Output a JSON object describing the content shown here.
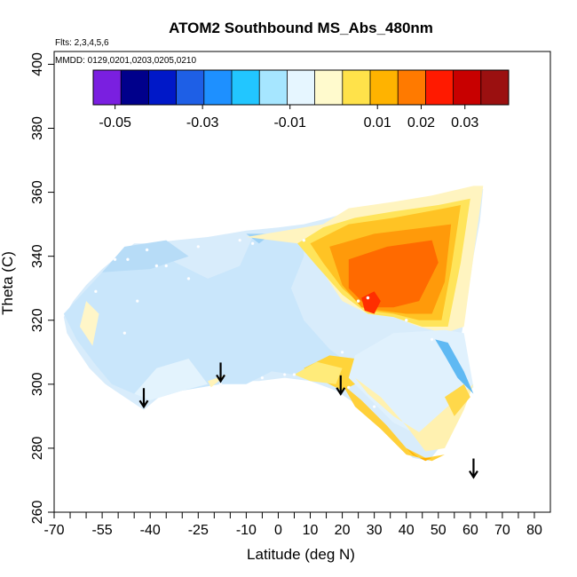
{
  "chart_data": {
    "type": "heatmap",
    "title": "ATOM2 Southbound MS_Abs_480nm",
    "flights_label": "Flts: 2,3,4,5,6",
    "dates_label": "MMDD: 0129,0201,0203,0205,0210",
    "xlabel": "Latitude (deg N)",
    "ylabel": "Theta (C)",
    "xlim": [
      -70,
      85
    ],
    "ylim": [
      260,
      404
    ],
    "x_ticks": [
      -70,
      -55,
      -40,
      -25,
      -10,
      0,
      10,
      20,
      30,
      40,
      50,
      60,
      70,
      80
    ],
    "x_ticks_minor": [
      -65,
      -60,
      -50,
      -45,
      -35,
      -30,
      -20,
      -15,
      -5,
      5,
      15,
      25,
      35,
      45,
      55,
      65,
      75
    ],
    "y_ticks": [
      260,
      280,
      300,
      320,
      340,
      360,
      380,
      400
    ],
    "colorbar": {
      "colors": [
        "#7a1fe0",
        "#00008b",
        "#0018c8",
        "#1e5fe6",
        "#1e90ff",
        "#22c6ff",
        "#a6e6ff",
        "#e6f6ff",
        "#fffacd",
        "#ffe24a",
        "#ffb300",
        "#ff7a00",
        "#ff1a00",
        "#c80000",
        "#9b1010"
      ],
      "tick_labels": [
        "-0.05",
        "-0.03",
        "-0.01",
        "0.01",
        "0.02",
        "0.03"
      ],
      "tick_values": [
        -0.05,
        -0.03,
        -0.01,
        0.01,
        0.02,
        0.03
      ],
      "range": [
        -0.055,
        0.04
      ]
    },
    "arrows": [
      {
        "lat": -42,
        "theta": 296
      },
      {
        "lat": -18,
        "theta": 304
      },
      {
        "lat": 19.5,
        "theta": 300
      },
      {
        "lat": 61,
        "theta": 274
      }
    ],
    "field_background": "#d8ecfb",
    "regions": [
      {
        "color": "#c9e6fb",
        "points": [
          [
            -67,
            322
          ],
          [
            -55,
            335
          ],
          [
            -48,
            342
          ],
          [
            -40,
            343
          ],
          [
            -32,
            338
          ],
          [
            -22,
            333
          ],
          [
            -12,
            337
          ],
          [
            -8,
            346
          ],
          [
            0,
            347
          ],
          [
            8,
            348
          ],
          [
            8,
            340
          ],
          [
            4,
            330
          ],
          [
            8,
            320
          ],
          [
            16,
            311
          ],
          [
            24,
            305
          ],
          [
            20,
            298
          ],
          [
            12,
            303
          ],
          [
            5,
            303
          ],
          [
            -2,
            304
          ],
          [
            -10,
            300
          ],
          [
            -18,
            300
          ],
          [
            -30,
            298
          ],
          [
            -40,
            295
          ],
          [
            -45,
            297
          ],
          [
            -52,
            300
          ],
          [
            -57,
            306
          ],
          [
            -63,
            314
          ]
        ]
      },
      {
        "color": "#e3f3fd",
        "points": [
          [
            -45,
            297
          ],
          [
            -40,
            295
          ],
          [
            -30,
            298
          ],
          [
            -22,
            300
          ],
          [
            -28,
            308
          ],
          [
            -38,
            305
          ]
        ]
      },
      {
        "color": "#b7dcf7",
        "points": [
          [
            -55,
            335
          ],
          [
            -48,
            343
          ],
          [
            -35,
            345
          ],
          [
            -28,
            340
          ],
          [
            -40,
            336
          ]
        ]
      },
      {
        "color": "#9dd1f5",
        "points": [
          [
            -10,
            347
          ],
          [
            -2,
            347
          ],
          [
            -6,
            344
          ]
        ]
      },
      {
        "color": "#fff6c8",
        "points": [
          [
            -60,
            326
          ],
          [
            -56,
            322
          ],
          [
            -58,
            312
          ],
          [
            -62,
            318
          ]
        ]
      },
      {
        "color": "#fff3b8",
        "points": [
          [
            -22,
            301
          ],
          [
            -16,
            303
          ],
          [
            -21,
            299
          ]
        ]
      },
      {
        "color": "#fff4c0",
        "points": [
          [
            -10,
            346
          ],
          [
            8,
            349
          ],
          [
            14,
            350
          ],
          [
            22,
            355
          ],
          [
            36,
            357
          ],
          [
            48,
            359
          ],
          [
            61,
            362
          ],
          [
            64,
            362
          ],
          [
            61,
            340
          ],
          [
            58,
            318
          ],
          [
            52,
            316
          ],
          [
            44,
            318
          ],
          [
            36,
            321
          ],
          [
            28,
            322
          ],
          [
            20,
            326
          ],
          [
            12,
            338
          ],
          [
            6,
            344
          ]
        ]
      },
      {
        "color": "#ffe45a",
        "points": [
          [
            6,
            344
          ],
          [
            14,
            349
          ],
          [
            24,
            352
          ],
          [
            36,
            354
          ],
          [
            50,
            356
          ],
          [
            60,
            358
          ],
          [
            57,
            338
          ],
          [
            53,
            318
          ],
          [
            45,
            318
          ],
          [
            36,
            321
          ],
          [
            28,
            322
          ],
          [
            20,
            328
          ],
          [
            12,
            337
          ]
        ]
      },
      {
        "color": "#ffc324",
        "points": [
          [
            10,
            344
          ],
          [
            22,
            350
          ],
          [
            36,
            352
          ],
          [
            52,
            355
          ],
          [
            57,
            356
          ],
          [
            54,
            336
          ],
          [
            51,
            320
          ],
          [
            44,
            320
          ],
          [
            36,
            322
          ],
          [
            28,
            323
          ],
          [
            20,
            330
          ],
          [
            14,
            338
          ]
        ]
      },
      {
        "color": "#ff9a0a",
        "points": [
          [
            16,
            343
          ],
          [
            30,
            347
          ],
          [
            46,
            349
          ],
          [
            54,
            350
          ],
          [
            52,
            332
          ],
          [
            48,
            322
          ],
          [
            40,
            322
          ],
          [
            32,
            323
          ],
          [
            26,
            324
          ],
          [
            20,
            331
          ]
        ]
      },
      {
        "color": "#ff6a00",
        "points": [
          [
            22,
            339
          ],
          [
            34,
            343
          ],
          [
            48,
            345
          ],
          [
            50,
            338
          ],
          [
            44,
            326
          ],
          [
            36,
            324
          ],
          [
            28,
            324
          ],
          [
            22,
            330
          ]
        ]
      },
      {
        "color": "#ff2e00",
        "points": [
          [
            26,
            327
          ],
          [
            30,
            329
          ],
          [
            32,
            326
          ],
          [
            30,
            322
          ],
          [
            27,
            323
          ]
        ]
      },
      {
        "color": "#ffd43a",
        "points": [
          [
            8,
            305
          ],
          [
            16,
            309
          ],
          [
            24,
            308
          ],
          [
            28,
            302
          ],
          [
            20,
            298
          ],
          [
            12,
            302
          ]
        ]
      },
      {
        "color": "#ffeb7a",
        "points": [
          [
            5,
            303
          ],
          [
            12,
            307
          ],
          [
            20,
            305
          ],
          [
            18,
            300
          ],
          [
            10,
            301
          ]
        ]
      },
      {
        "color": "#e0f1fd",
        "points": [
          [
            24,
            309
          ],
          [
            36,
            316
          ],
          [
            52,
            317
          ],
          [
            58,
            316
          ],
          [
            61,
            299
          ],
          [
            54,
            293
          ],
          [
            44,
            284
          ],
          [
            36,
            288
          ],
          [
            28,
            296
          ],
          [
            22,
            302
          ]
        ]
      },
      {
        "color": "#fff1b0",
        "points": [
          [
            24,
            302
          ],
          [
            32,
            296
          ],
          [
            40,
            287
          ],
          [
            46,
            279
          ],
          [
            52,
            280
          ],
          [
            58,
            292
          ],
          [
            61,
            300
          ],
          [
            54,
            294
          ],
          [
            44,
            285
          ],
          [
            36,
            290
          ],
          [
            28,
            297
          ]
        ]
      },
      {
        "color": "#ffd03a",
        "points": [
          [
            20,
            300
          ],
          [
            26,
            295
          ],
          [
            34,
            287
          ],
          [
            40,
            280
          ],
          [
            46,
            277
          ],
          [
            52,
            278
          ],
          [
            48,
            276
          ],
          [
            40,
            278
          ],
          [
            32,
            286
          ],
          [
            24,
            293
          ]
        ]
      },
      {
        "color": "#ffb000",
        "points": [
          [
            40,
            280
          ],
          [
            44,
            277
          ],
          [
            48,
            277
          ],
          [
            46,
            276
          ],
          [
            42,
            278
          ]
        ]
      },
      {
        "color": "#5fb9f3",
        "points": [
          [
            49,
            314
          ],
          [
            53,
            313
          ],
          [
            58,
            304
          ],
          [
            61,
            297
          ],
          [
            56,
            302
          ],
          [
            52,
            309
          ]
        ]
      },
      {
        "color": "#ffd84a",
        "points": [
          [
            52,
            296
          ],
          [
            58,
            300
          ],
          [
            60,
            296
          ],
          [
            55,
            290
          ]
        ]
      }
    ],
    "outline": [
      [
        -67,
        321
      ],
      [
        -64,
        326
      ],
      [
        -60,
        331
      ],
      [
        -55,
        336
      ],
      [
        -49,
        341
      ],
      [
        -45,
        344
      ],
      [
        -40,
        344
      ],
      [
        -32,
        345
      ],
      [
        -22,
        346
      ],
      [
        -10,
        348
      ],
      [
        0,
        349
      ],
      [
        8,
        350
      ],
      [
        16,
        352
      ],
      [
        26,
        355
      ],
      [
        38,
        357
      ],
      [
        50,
        359
      ],
      [
        58,
        360
      ],
      [
        64,
        361
      ],
      [
        63,
        351
      ],
      [
        61,
        340
      ],
      [
        59,
        326
      ],
      [
        57,
        314
      ],
      [
        56,
        302
      ],
      [
        54,
        290
      ],
      [
        51,
        281
      ],
      [
        47,
        276
      ],
      [
        42,
        277
      ],
      [
        38,
        281
      ],
      [
        34,
        285
      ],
      [
        29,
        290
      ],
      [
        24,
        294
      ],
      [
        18,
        298
      ],
      [
        10,
        301
      ],
      [
        2,
        302
      ],
      [
        -6,
        301
      ],
      [
        -14,
        301
      ],
      [
        -20,
        301
      ],
      [
        -28,
        299
      ],
      [
        -36,
        297
      ],
      [
        -42,
        292
      ],
      [
        -48,
        296
      ],
      [
        -54,
        300
      ],
      [
        -59,
        305
      ],
      [
        -63,
        311
      ],
      [
        -66,
        316
      ]
    ],
    "data_points": [
      [
        -57,
        329
      ],
      [
        -51,
        339
      ],
      [
        -47,
        339
      ],
      [
        -41,
        342
      ],
      [
        -38,
        337
      ],
      [
        -35,
        337
      ],
      [
        -48,
        316
      ],
      [
        -44,
        326
      ],
      [
        -28,
        333
      ],
      [
        -25,
        343
      ],
      [
        -12,
        345
      ],
      [
        -8,
        344
      ],
      [
        8,
        345
      ],
      [
        -5,
        302
      ],
      [
        2,
        303
      ],
      [
        5,
        303
      ],
      [
        20,
        310
      ],
      [
        25,
        326
      ],
      [
        28,
        327
      ],
      [
        40,
        320
      ],
      [
        48,
        314
      ],
      [
        22,
        299
      ],
      [
        30,
        293
      ],
      [
        -18,
        300
      ]
    ]
  }
}
